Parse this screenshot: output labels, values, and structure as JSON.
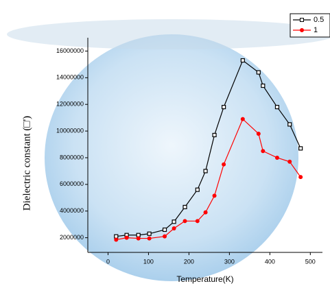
{
  "chart_data": {
    "type": "line",
    "x_label": "Temperature(K)",
    "y_label": "Dielectric constant (□')",
    "xlim": [
      -50,
      530
    ],
    "xticks": [
      0,
      100,
      200,
      300,
      400,
      500
    ],
    "ylim": [
      900000,
      17000000
    ],
    "yticks": [
      2000000,
      4000000,
      6000000,
      8000000,
      10000000,
      12000000,
      14000000,
      16000000
    ],
    "legend": "top-right",
    "series": [
      {
        "name": "0.5",
        "color": "#000000",
        "marker": "square",
        "x": [
          20,
          46,
          75,
          102,
          140,
          163,
          190,
          221,
          241,
          263,
          286,
          333,
          372,
          383,
          418,
          449,
          476
        ],
        "values": [
          2100000,
          2200000,
          2200000,
          2300000,
          2600000,
          3200000,
          4300000,
          5600000,
          7000000,
          9700000,
          11800000,
          15300000,
          14400000,
          13400000,
          11800000,
          10500000,
          8700000
        ]
      },
      {
        "name": "1",
        "color": "#ff0000",
        "marker": "circle",
        "x": [
          20,
          46,
          75,
          102,
          140,
          163,
          190,
          221,
          241,
          263,
          286,
          333,
          372,
          383,
          418,
          449,
          476
        ],
        "values": [
          1850000,
          2000000,
          1950000,
          1950000,
          2100000,
          2700000,
          3250000,
          3250000,
          3900000,
          5150000,
          7500000,
          10900000,
          9800000,
          8500000,
          8000000,
          7700000,
          6550000
        ]
      }
    ]
  }
}
